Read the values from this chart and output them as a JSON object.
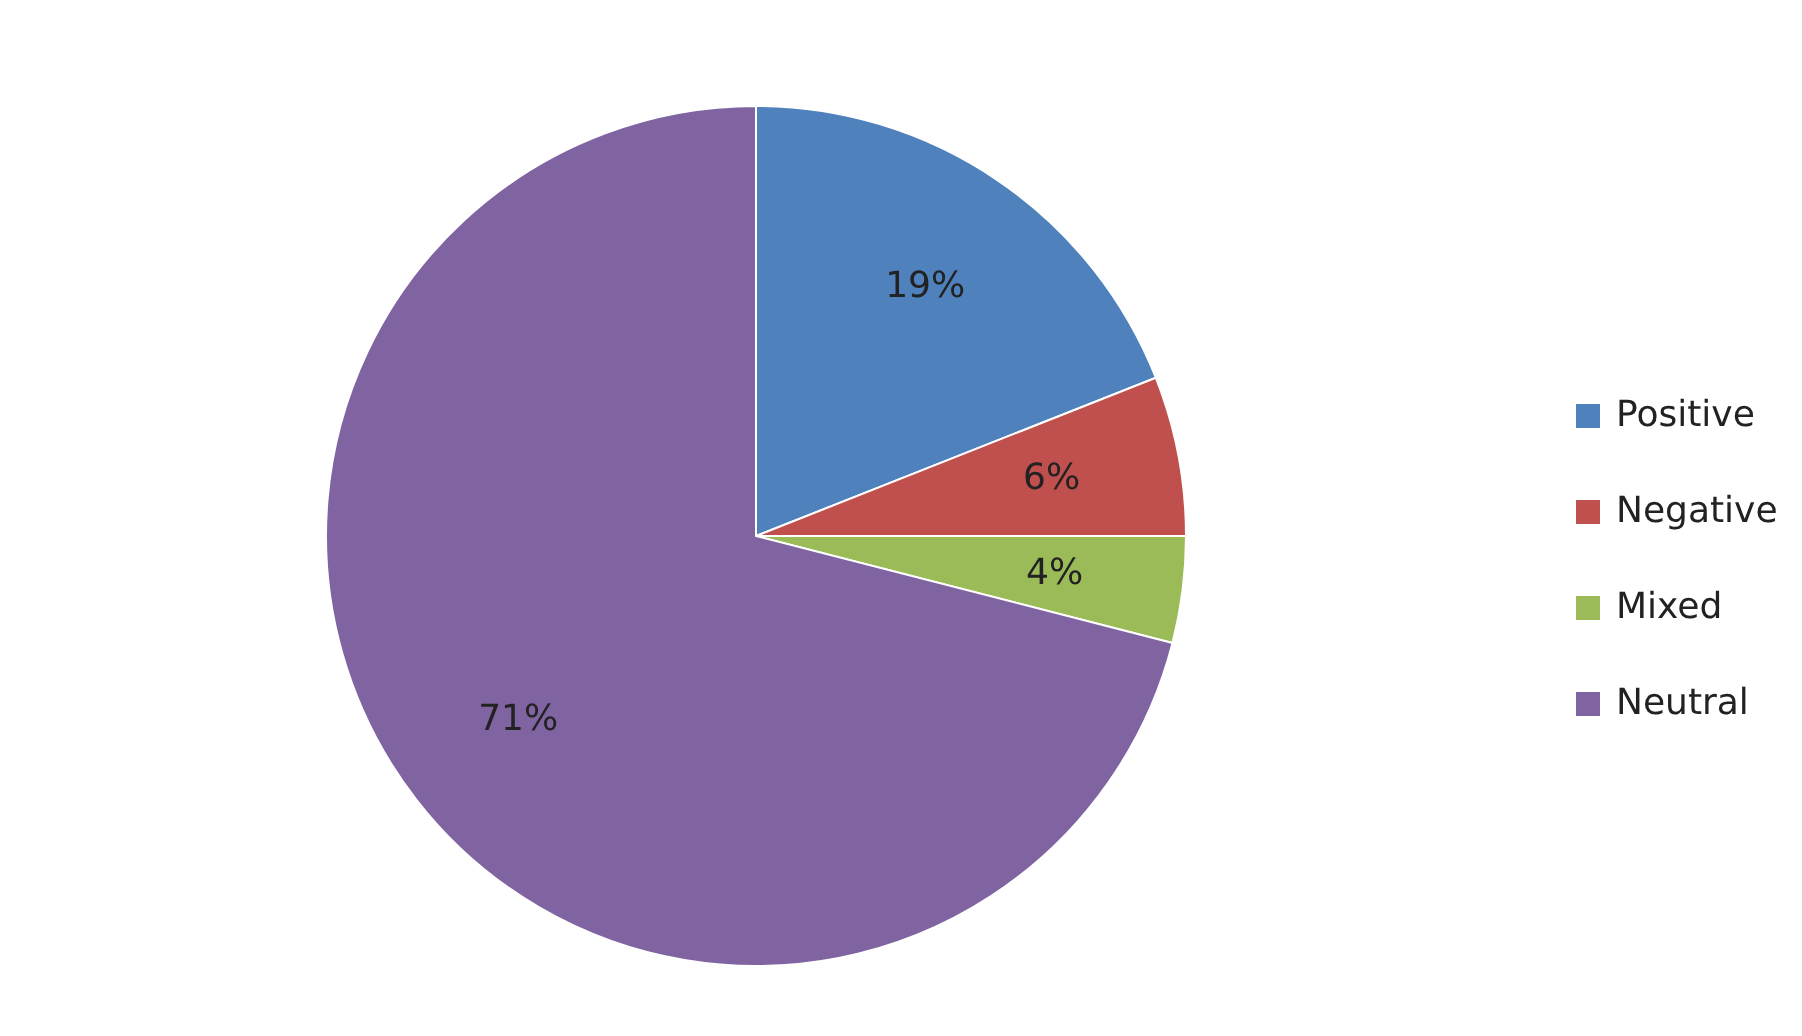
{
  "chart_data": {
    "type": "pie",
    "categories": [
      "Positive",
      "Negative",
      "Mixed",
      "Neutral"
    ],
    "values": [
      19,
      6,
      4,
      71
    ],
    "colors": [
      "#4f81bd",
      "#c0504d",
      "#9bbb59",
      "#8064a2"
    ],
    "value_labels": [
      "19%",
      "6%",
      "4%",
      "71%"
    ],
    "legend": "right"
  }
}
